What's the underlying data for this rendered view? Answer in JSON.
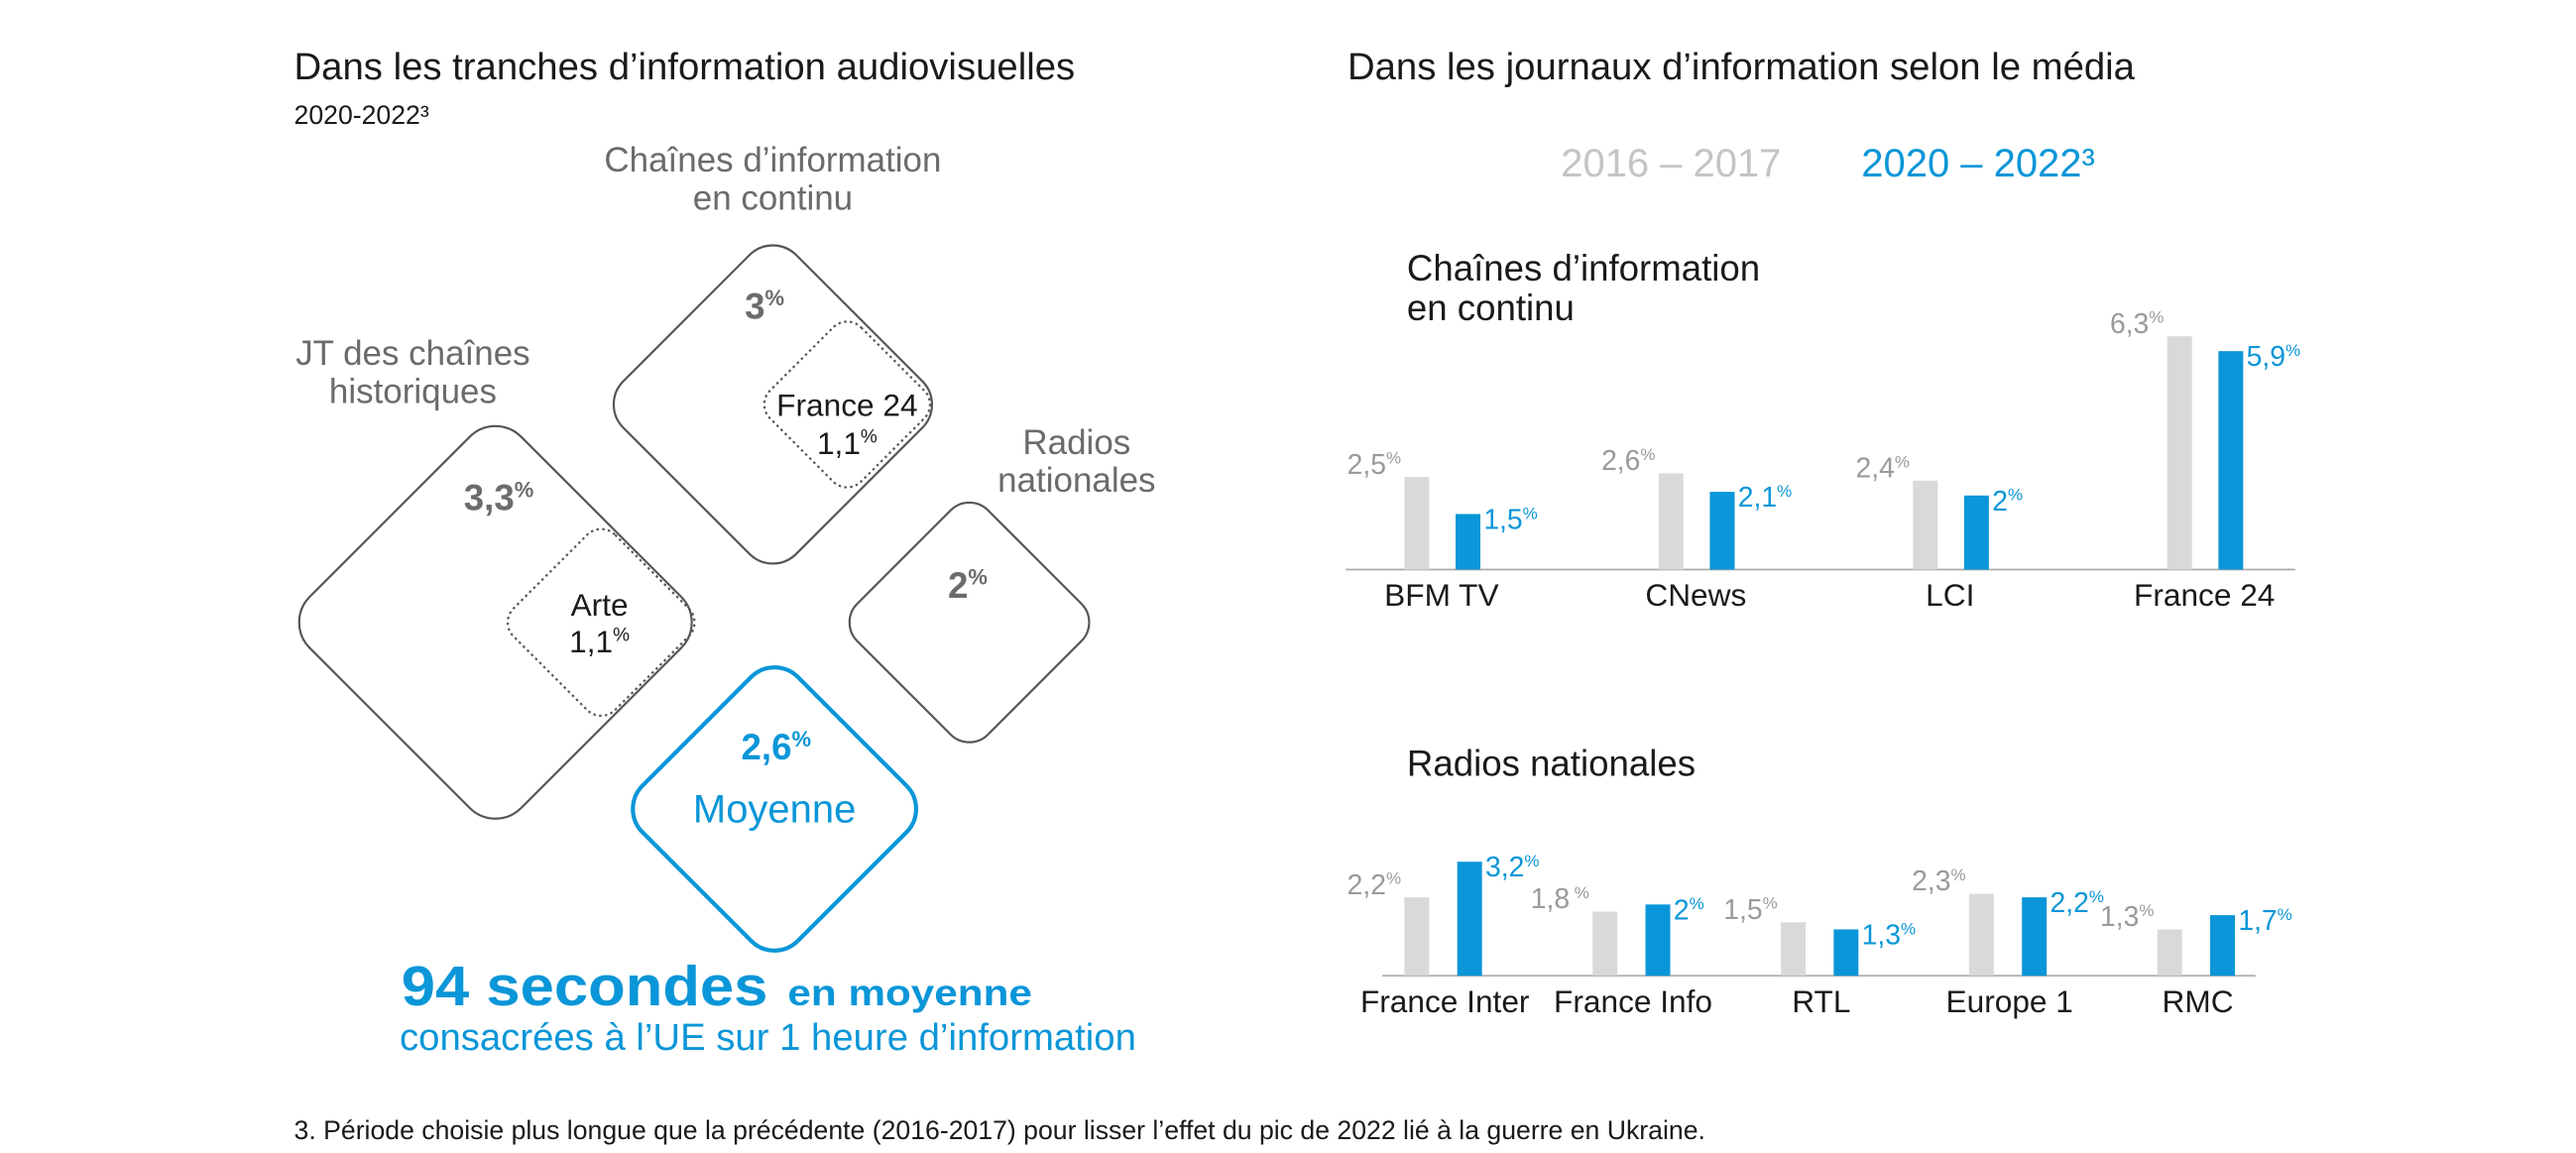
{
  "diagram": {
    "title": "Dans les tranches d’information audiovisuelles",
    "subtitle": "2020-2022³",
    "groups": [
      {
        "label": [
          "Chaînes d’information",
          "en continu"
        ],
        "value": "3%",
        "inner": {
          "label": "France 24",
          "value": "1,1%"
        }
      },
      {
        "label": [
          "JT des chaînes",
          "historiques"
        ],
        "value": "3,3%",
        "inner": {
          "label": "Arte",
          "value": "1,1%"
        }
      },
      {
        "label": [
          "Radios",
          "nationales"
        ],
        "value": "2%"
      }
    ],
    "average": {
      "value": "2,6%",
      "label": "Moyenne"
    },
    "summary": {
      "number": "94 secondes",
      "suffix": "en moyenne",
      "line2": "consacrées à l’UE sur 1 heure d’information"
    },
    "footnote": "3. Période choisie plus longue que la précédente (2016-2017) pour lisser l’effet du pic de 2022 lié à la guerre en Ukraine."
  },
  "right_title": "Dans les journaux d’information selon le média",
  "chart_data": [
    {
      "type": "bar",
      "title": [
        "Chaînes d’information",
        "en continu"
      ],
      "categories": [
        "BFM TV",
        "CNews",
        "LCI",
        "France 24"
      ],
      "series": [
        {
          "name": "2016 – 2017",
          "color": "#d9d9d9",
          "label_color": "#9a9a9a",
          "values": [
            2.5,
            2.6,
            2.4,
            6.3
          ],
          "value_labels": [
            "2,5%",
            "2,6%",
            "2,4%",
            "6,3%"
          ]
        },
        {
          "name": "2020 – 2022³",
          "color": "#0a96d8",
          "label_color": "#0a96d8",
          "values": [
            1.5,
            2.1,
            2,
            5.9
          ],
          "value_labels": [
            "1,5%",
            "2,1%",
            "2%",
            "5,9%"
          ]
        }
      ],
      "ylim": [
        0,
        7
      ]
    },
    {
      "type": "bar",
      "title": [
        "Radios nationales"
      ],
      "categories": [
        "France Inter",
        "France Info",
        "RTL",
        "Europe 1",
        "RMC"
      ],
      "series": [
        {
          "color": "#d9d9d9",
          "label_color": "#9a9a9a",
          "values": [
            2.2,
            1.8,
            1.5,
            2.3,
            1.3
          ],
          "value_labels": [
            "2,2%",
            "1,8 %",
            "1,5%",
            "2,3%",
            "1,3%"
          ]
        },
        {
          "color": "#0a96d8",
          "label_color": "#0a96d8",
          "values": [
            3.2,
            2,
            1.3,
            2.2,
            1.7
          ],
          "value_labels": [
            "3,2%",
            "2%",
            "1,3%",
            "2,2%",
            "1,7%"
          ]
        }
      ],
      "ylim": [
        0,
        7
      ]
    }
  ]
}
